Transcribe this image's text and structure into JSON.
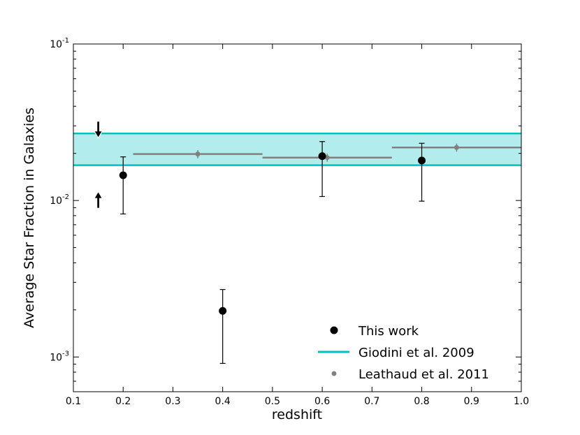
{
  "chart_data": {
    "type": "scatter",
    "xlabel": "redshift",
    "ylabel": "Average Star Fraction in Galaxies",
    "xlim": [
      0.1,
      1.0
    ],
    "ylim": [
      0.0006,
      0.1
    ],
    "y_scale": "log",
    "x_ticks": [
      "0.1",
      "0.2",
      "0.3",
      "0.4",
      "0.5",
      "0.6",
      "0.7",
      "0.8",
      "0.9",
      "1.0"
    ],
    "y_ticks": [
      {
        "value": 0.001,
        "base": "10",
        "exp": "-3"
      },
      {
        "value": 0.01,
        "base": "10",
        "exp": "-2"
      },
      {
        "value": 0.1,
        "base": "10",
        "exp": "-1"
      }
    ],
    "legend_position": "lower-right",
    "series": [
      {
        "name": "This work",
        "color": "#000000",
        "marker": "circle",
        "points": [
          {
            "x": 0.2,
            "y": 0.0145,
            "ylow": 0.0082,
            "yhigh": 0.019
          },
          {
            "x": 0.4,
            "y": 0.00197,
            "ylow": 0.00091,
            "yhigh": 0.0027
          },
          {
            "x": 0.6,
            "y": 0.0192,
            "ylow": 0.0106,
            "yhigh": 0.0238
          },
          {
            "x": 0.8,
            "y": 0.018,
            "ylow": 0.0099,
            "yhigh": 0.0232
          }
        ]
      },
      {
        "name": "Giodini et al. 2009",
        "color": "#00bfbf",
        "band_color": "#b3ecec",
        "band": {
          "ylow": 0.0168,
          "yhigh": 0.0268
        }
      },
      {
        "name": "Leathaud et al. 2011",
        "color": "#808080",
        "marker": "dot",
        "points": [
          {
            "x": 0.35,
            "xlow": 0.22,
            "xhigh": 0.48,
            "y": 0.0198,
            "ylow": 0.0186,
            "yhigh": 0.021
          },
          {
            "x": 0.61,
            "xlow": 0.48,
            "xhigh": 0.74,
            "y": 0.0188,
            "ylow": 0.0177,
            "yhigh": 0.0199
          },
          {
            "x": 0.87,
            "xlow": 0.74,
            "xhigh": 1.0,
            "y": 0.0218,
            "ylow": 0.0205,
            "yhigh": 0.0231
          }
        ]
      }
    ],
    "limit_arrows": [
      {
        "x": 0.15,
        "y": 0.0278,
        "direction": "down",
        "fill": "#000000",
        "edge": "#ffffff"
      },
      {
        "x": 0.15,
        "y": 0.0103,
        "direction": "up",
        "fill": "#000000",
        "edge": "#ffffff"
      }
    ]
  }
}
